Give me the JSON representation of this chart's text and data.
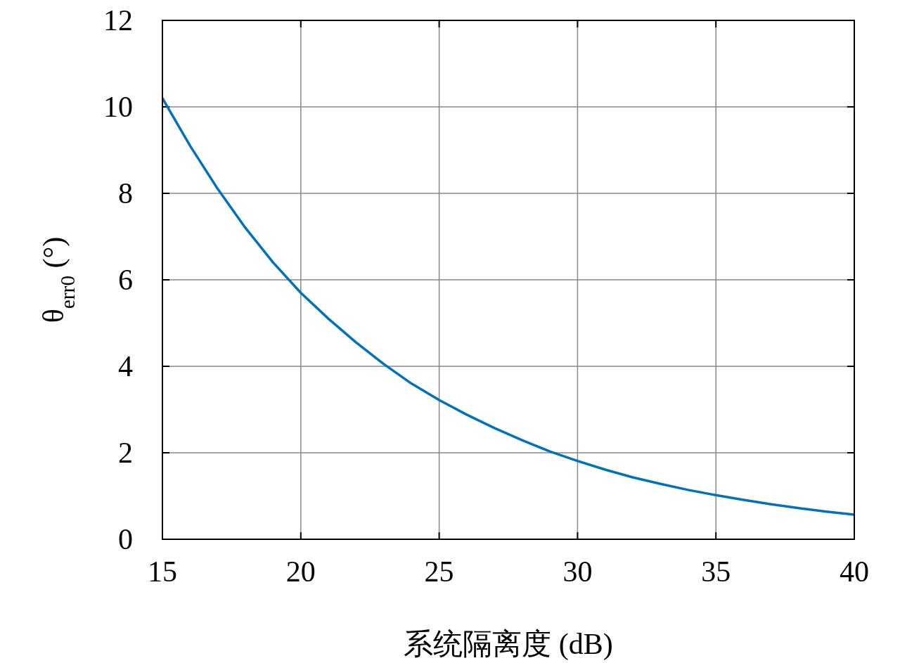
{
  "chart_data": {
    "type": "line",
    "xlabel": "系统隔离度 (dB)",
    "ylabel": "θ$_{err0}$ (°)",
    "x": [
      15,
      16,
      17,
      18,
      19,
      20,
      21,
      22,
      23,
      24,
      25,
      26,
      27,
      28,
      29,
      30,
      31,
      32,
      33,
      34,
      35,
      36,
      37,
      38,
      39,
      40
    ],
    "series": [
      {
        "color": "#0072bd",
        "values": [
          10.2,
          9.1,
          8.1,
          7.2,
          6.4,
          5.7,
          5.1,
          4.55,
          4.05,
          3.6,
          3.22,
          2.88,
          2.57,
          2.29,
          2.03,
          1.81,
          1.61,
          1.43,
          1.28,
          1.14,
          1.02,
          0.91,
          0.81,
          0.72,
          0.64,
          0.57
        ]
      }
    ],
    "xlim": [
      15,
      40
    ],
    "ylim": [
      0,
      12
    ],
    "xticks": [
      15,
      20,
      25,
      30,
      35,
      40
    ],
    "yticks": [
      0,
      2,
      4,
      6,
      8,
      10,
      12
    ],
    "grid": true
  }
}
